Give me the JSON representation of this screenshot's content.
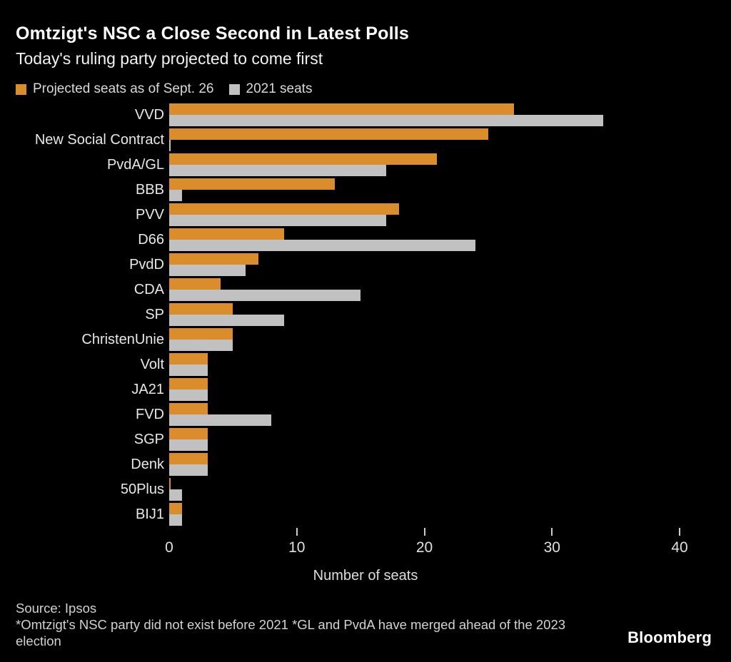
{
  "header": {
    "title": "Omtzigt's NSC a Close Second in Latest Polls",
    "subtitle": "Today's ruling party projected to come first"
  },
  "chart_data": {
    "type": "bar",
    "orientation": "horizontal",
    "title": "Omtzigt's NSC a Close Second in Latest Polls",
    "subtitle": "Today's ruling party projected to come first",
    "categories": [
      "VVD",
      "New Social Contract",
      "PvdA/GL",
      "BBB",
      "PVV",
      "D66",
      "PvdD",
      "CDA",
      "SP",
      "ChristenUnie",
      "Volt",
      "JA21",
      "FVD",
      "SGP",
      "Denk",
      "50Plus",
      "BIJ1"
    ],
    "series": [
      {
        "name": "Projected seats as of Sept. 26",
        "color": "#DA8D2A",
        "values": [
          27,
          25,
          21,
          13,
          18,
          9,
          7,
          4,
          5,
          5,
          3,
          3,
          3,
          3,
          3,
          0,
          1
        ]
      },
      {
        "name": "2021 seats",
        "color": "#C1C1C1",
        "values": [
          34,
          0,
          17,
          1,
          17,
          24,
          6,
          15,
          9,
          5,
          3,
          3,
          8,
          3,
          3,
          1,
          1
        ]
      }
    ],
    "xlabel": "Number of seats",
    "xlim": [
      0,
      40
    ],
    "xticks": [
      0,
      10,
      20,
      30,
      40
    ],
    "grid": false,
    "legend_position": "top",
    "background": "#000000"
  },
  "footer": {
    "source": "Source: Ipsos",
    "note": "*Omtzigt's NSC party did not exist before 2021 *GL and PvdA have merged ahead of the 2023 election",
    "logo": "Bloomberg"
  }
}
